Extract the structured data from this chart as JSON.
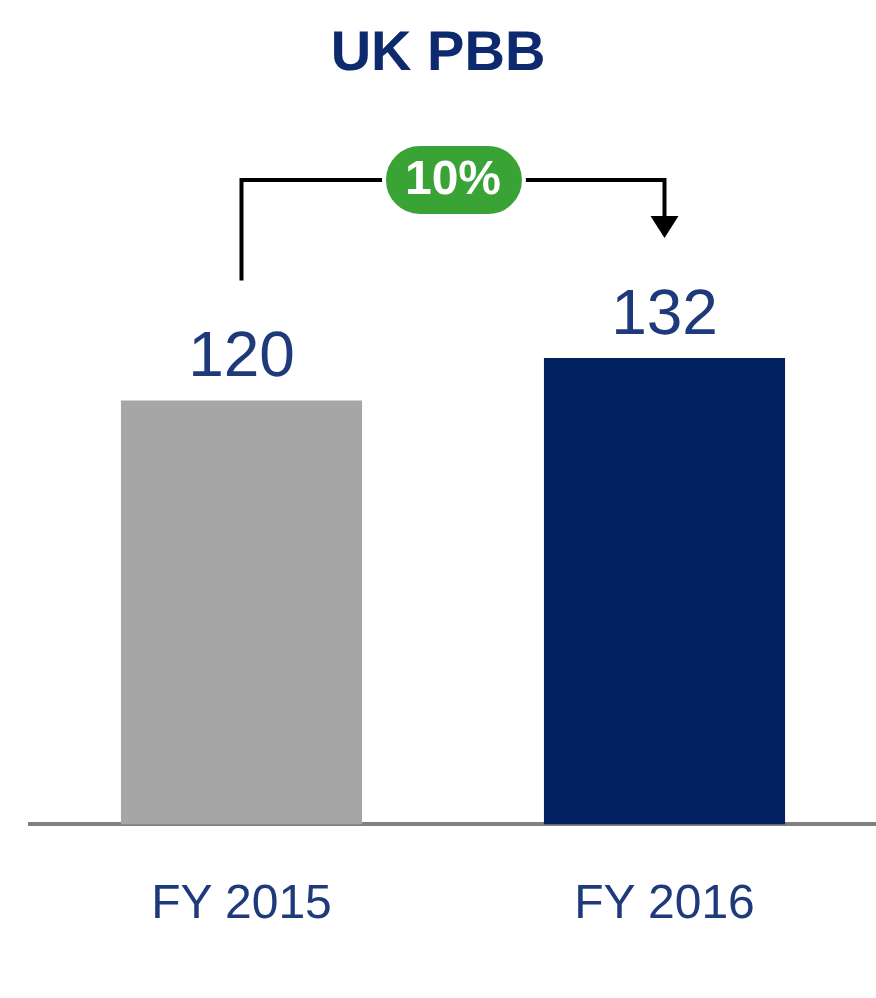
{
  "chart_data": {
    "type": "bar",
    "title": "UK PBB",
    "categories": [
      "FY 2015",
      "FY 2016"
    ],
    "values": [
      120,
      132
    ],
    "colors": [
      "#a6a6a6",
      "#002060"
    ],
    "data_labels": true,
    "annotations": [
      "10%"
    ]
  }
}
